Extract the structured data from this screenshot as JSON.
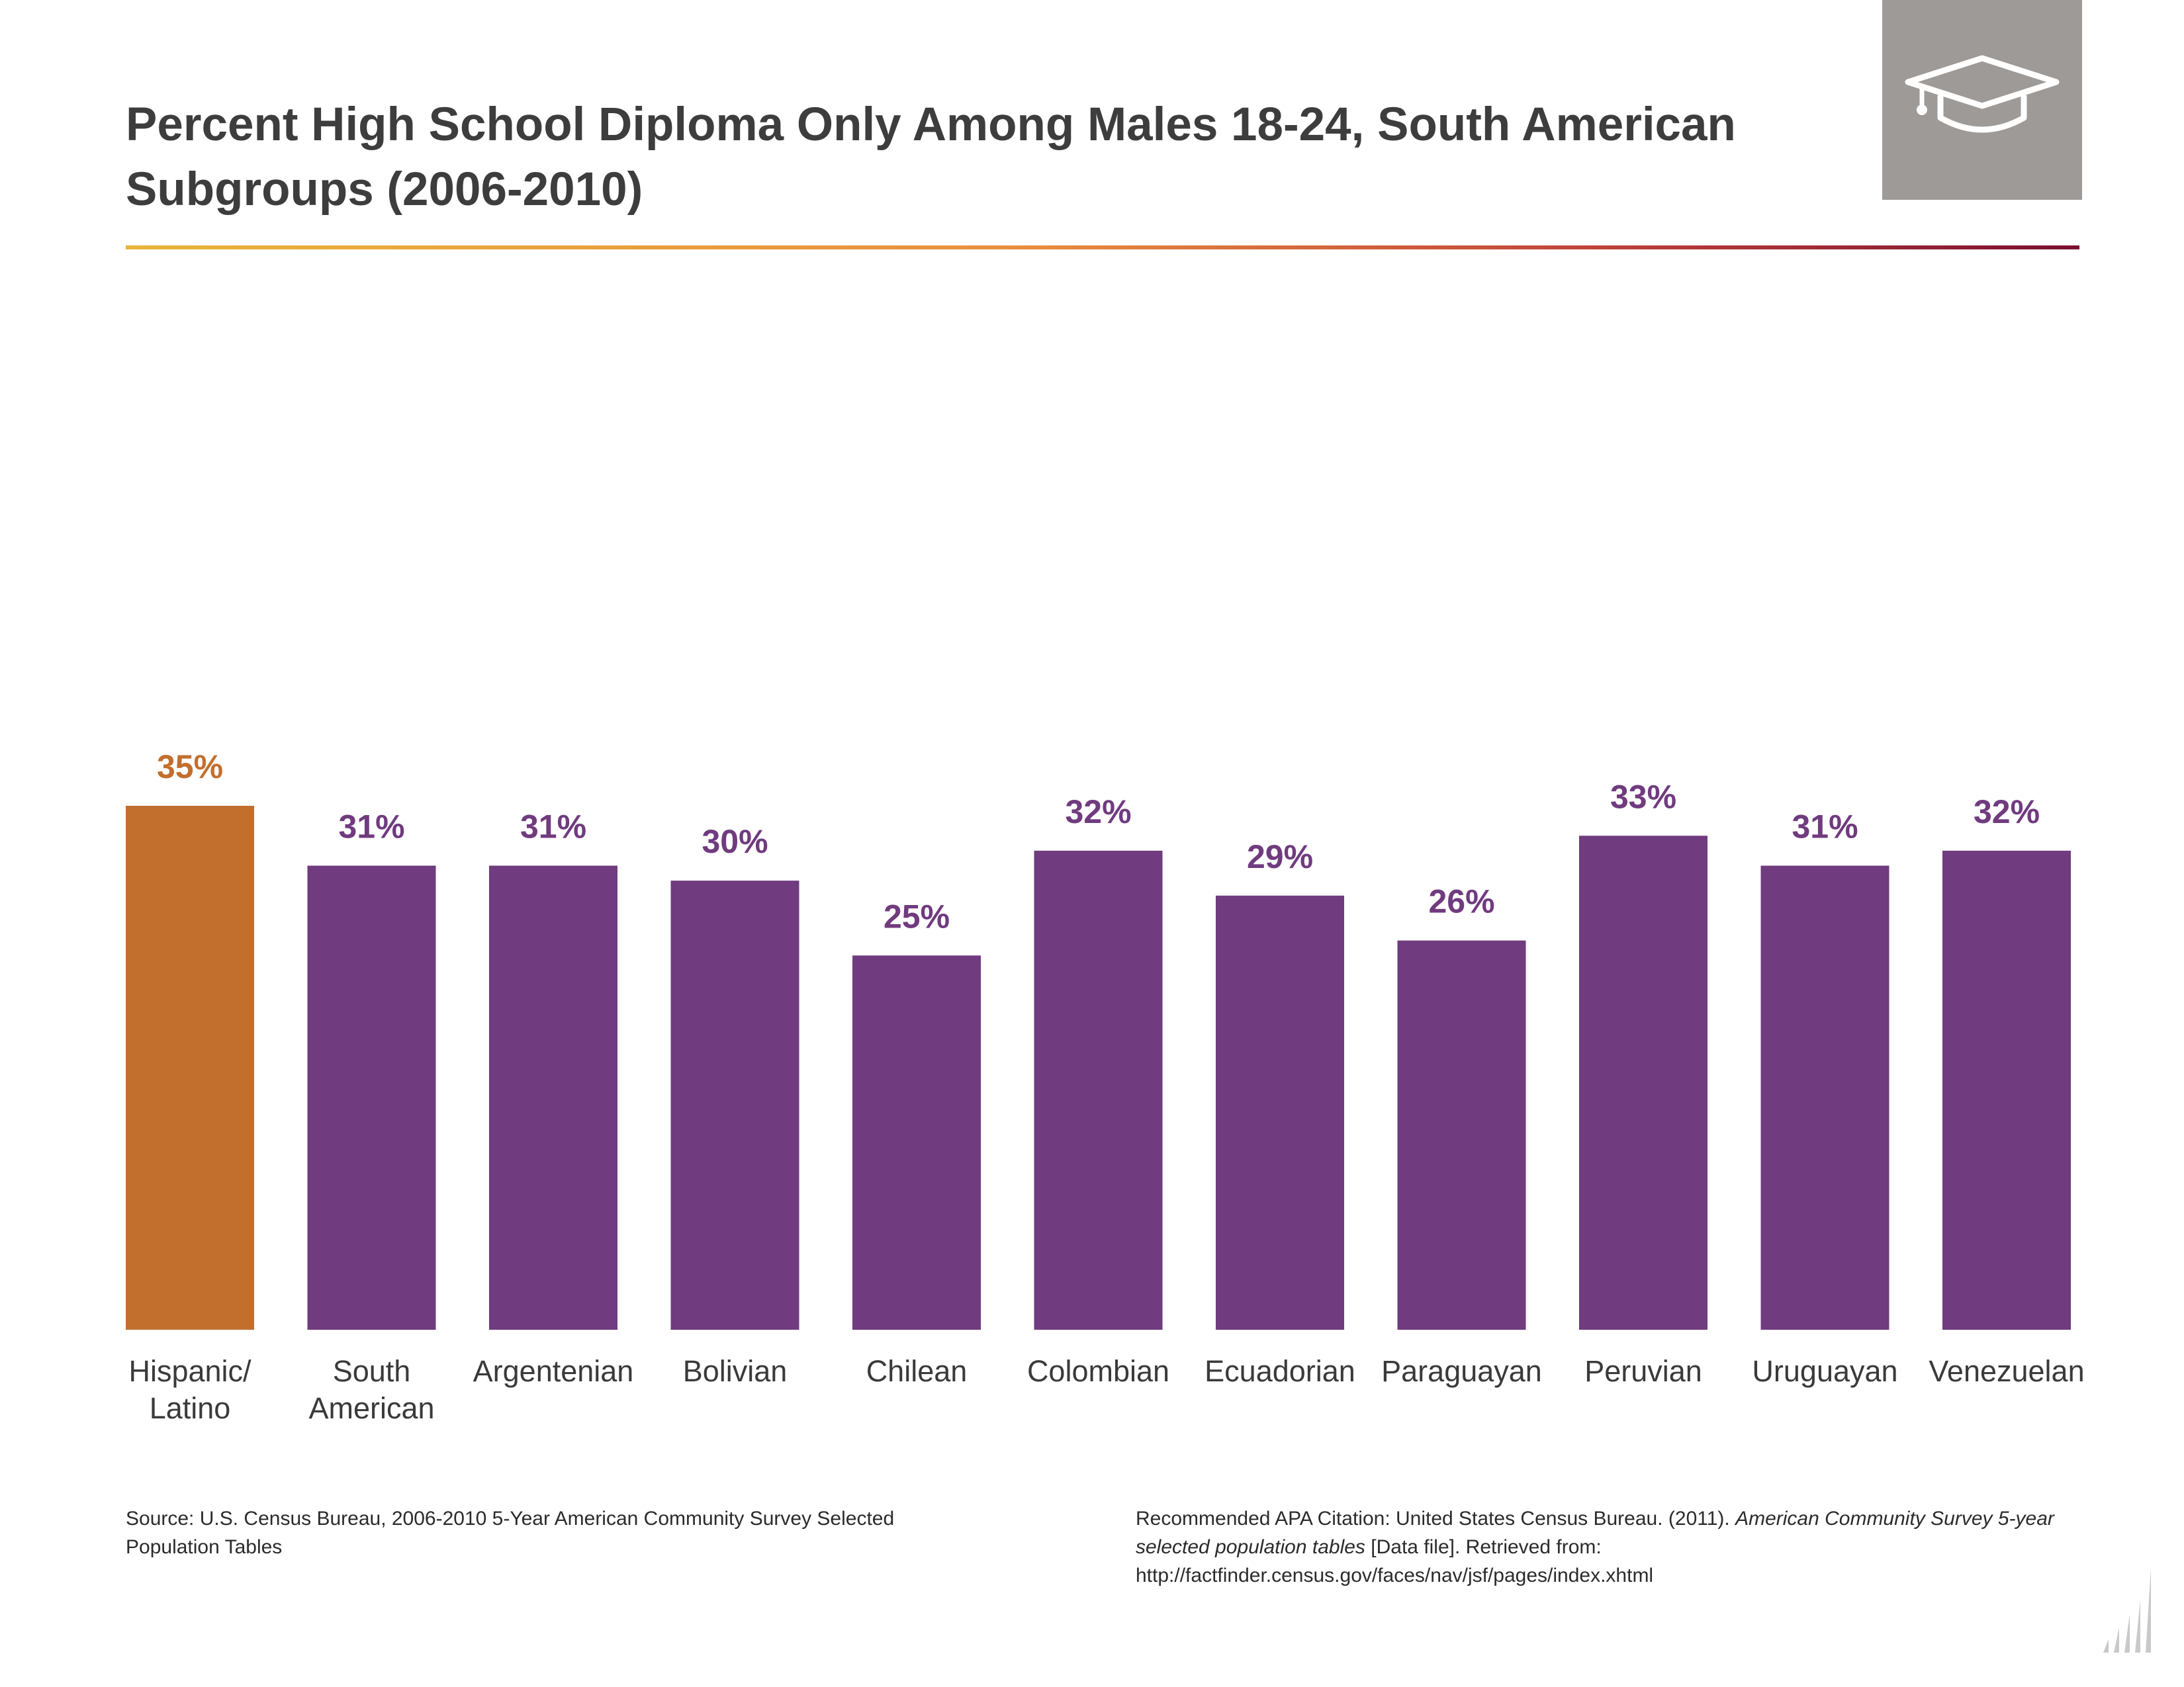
{
  "chart_data": {
    "type": "bar",
    "title": "Percent High School Diploma Only Among Males 18-24, South American Subgroups (2006-2010)",
    "categories": [
      [
        "Hispanic/",
        "Latino"
      ],
      [
        "South",
        "American"
      ],
      [
        "Argentenian"
      ],
      [
        "Bolivian"
      ],
      [
        "Chilean"
      ],
      [
        "Colombian"
      ],
      [
        "Ecuadorian"
      ],
      [
        "Paraguayan"
      ],
      [
        "Peruvian"
      ],
      [
        "Uruguayan"
      ],
      [
        "Venezuelan"
      ]
    ],
    "values": [
      35,
      31,
      31,
      30,
      25,
      32,
      29,
      26,
      33,
      31,
      32
    ],
    "data_labels": [
      "35%",
      "31%",
      "31%",
      "30%",
      "25%",
      "32%",
      "29%",
      "26%",
      "33%",
      "31%",
      "32%"
    ],
    "bar_colors": [
      "#c26f2e",
      "#703b7f",
      "#703b7f",
      "#703b7f",
      "#703b7f",
      "#703b7f",
      "#703b7f",
      "#703b7f",
      "#703b7f",
      "#703b7f",
      "#703b7f"
    ],
    "label_colors": [
      "#c26f2e",
      "#703b7f",
      "#703b7f",
      "#703b7f",
      "#703b7f",
      "#703b7f",
      "#703b7f",
      "#703b7f",
      "#703b7f",
      "#703b7f",
      "#703b7f"
    ],
    "ylim": [
      0,
      35
    ],
    "grid": false,
    "legend": "none",
    "xlabel": "",
    "ylabel": ""
  },
  "header": {
    "title": "Percent High School Diploma Only Among Males 18-24, South American Subgroups (2006-2010)",
    "icon": "graduation-cap-icon"
  },
  "footer": {
    "source": "Source: U.S. Census Bureau, 2006-2010 5-Year American Community Survey Selected Population Tables",
    "citation_prefix": "Recommended APA Citation: United States Census Bureau. (2011). ",
    "citation_italic": "American Community Survey 5-year selected population tables",
    "citation_suffix": " [Data file]. Retrieved from: http://factfinder.census.gov/faces/nav/jsf/pages/index.xhtml",
    "logo_icon": "bar-chart-logo-icon"
  },
  "colors": {
    "accent_orange": "#c26f2e",
    "accent_purple": "#703b7f",
    "icon_box": "#9d9a98"
  }
}
